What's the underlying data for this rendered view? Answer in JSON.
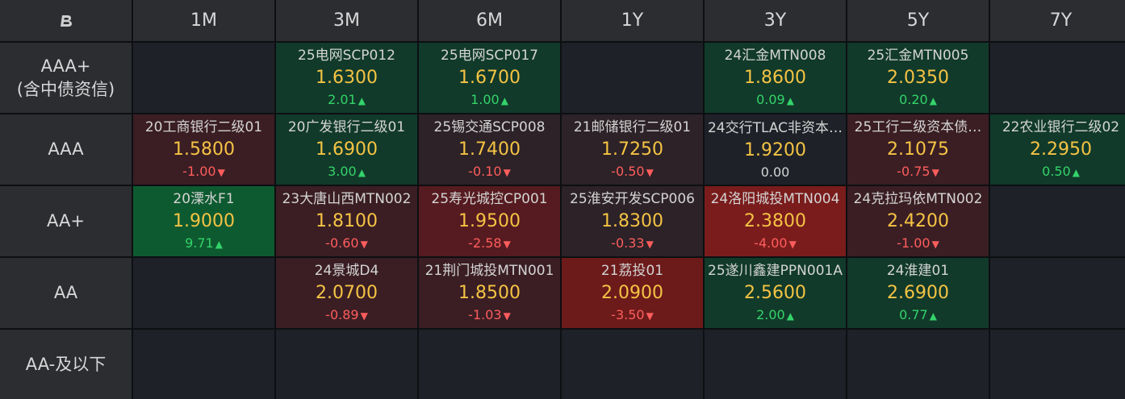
{
  "colors": {
    "up": "#34d36a",
    "down": "#ff5d5d",
    "rate": "#f5c344"
  },
  "corner_icon": "brand-b-icon",
  "headers": [
    "1M",
    "3M",
    "6M",
    "1Y",
    "3Y",
    "5Y",
    "7Y"
  ],
  "rows": [
    {
      "label": [
        "AAA+",
        "(含中债资信)"
      ],
      "cells": [
        null,
        {
          "name": "25电网SCP012",
          "rate": "1.6300",
          "change": "2.01",
          "dir": "up",
          "bg": "g2"
        },
        {
          "name": "25电网SCP017",
          "rate": "1.6700",
          "change": "1.00",
          "dir": "up",
          "bg": "g2"
        },
        null,
        {
          "name": "24汇金MTN008",
          "rate": "1.8600",
          "change": "0.09",
          "dir": "up",
          "bg": "g2"
        },
        {
          "name": "25汇金MTN005",
          "rate": "2.0350",
          "change": "0.20",
          "dir": "up",
          "bg": "g2"
        },
        null
      ]
    },
    {
      "label": [
        "AAA"
      ],
      "cells": [
        {
          "name": "20工商银行二级01",
          "rate": "1.5800",
          "change": "-1.00",
          "dir": "down",
          "bg": "r2"
        },
        {
          "name": "20广发银行二级01",
          "rate": "1.6900",
          "change": "3.00",
          "dir": "up",
          "bg": "g2"
        },
        {
          "name": "25锡交通SCP008",
          "rate": "1.7400",
          "change": "-0.10",
          "dir": "down",
          "bg": "r1"
        },
        {
          "name": "21邮储银行二级01",
          "rate": "1.7250",
          "change": "-0.50",
          "dir": "down",
          "bg": "r1"
        },
        {
          "name": "24交行TLAC非资本…",
          "rate": "1.9200",
          "change": "0.00",
          "dir": "flat",
          "bg": "n0"
        },
        {
          "name": "25工行二级资本债…",
          "rate": "2.1075",
          "change": "-0.75",
          "dir": "down",
          "bg": "r2"
        },
        {
          "name": "22农业银行二级02",
          "rate": "2.2950",
          "change": "0.50",
          "dir": "up",
          "bg": "g2"
        }
      ]
    },
    {
      "label": [
        "AA+"
      ],
      "cells": [
        {
          "name": "20溧水F1",
          "rate": "1.9000",
          "change": "9.71",
          "dir": "up",
          "bg": "g3"
        },
        {
          "name": "23大唐山西MTN002",
          "rate": "1.8100",
          "change": "-0.60",
          "dir": "down",
          "bg": "r2"
        },
        {
          "name": "25寿光城控CP001",
          "rate": "1.9500",
          "change": "-2.58",
          "dir": "down",
          "bg": "r3"
        },
        {
          "name": "25淮安开发SCP006",
          "rate": "1.8300",
          "change": "-0.33",
          "dir": "down",
          "bg": "r1"
        },
        {
          "name": "24洛阳城投MTN004",
          "rate": "2.3800",
          "change": "-4.00",
          "dir": "down",
          "bg": "r5"
        },
        {
          "name": "24克拉玛依MTN002",
          "rate": "2.4200",
          "change": "-1.00",
          "dir": "down",
          "bg": "r2"
        },
        null
      ]
    },
    {
      "label": [
        "AA"
      ],
      "cells": [
        null,
        {
          "name": "24景城D4",
          "rate": "2.0700",
          "change": "-0.89",
          "dir": "down",
          "bg": "r2"
        },
        {
          "name": "21荆门城投MTN001",
          "rate": "1.8500",
          "change": "-1.03",
          "dir": "down",
          "bg": "r2"
        },
        {
          "name": "21荔投01",
          "rate": "2.0900",
          "change": "-3.50",
          "dir": "down",
          "bg": "r4"
        },
        {
          "name": "25遂川鑫建PPN001A",
          "rate": "2.5600",
          "change": "2.00",
          "dir": "up",
          "bg": "g2"
        },
        {
          "name": "24淮建01",
          "rate": "2.6900",
          "change": "0.77",
          "dir": "up",
          "bg": "g2"
        },
        null
      ]
    },
    {
      "label": [
        "AA-及以下"
      ],
      "cells": [
        null,
        null,
        null,
        null,
        null,
        null,
        null
      ]
    }
  ]
}
